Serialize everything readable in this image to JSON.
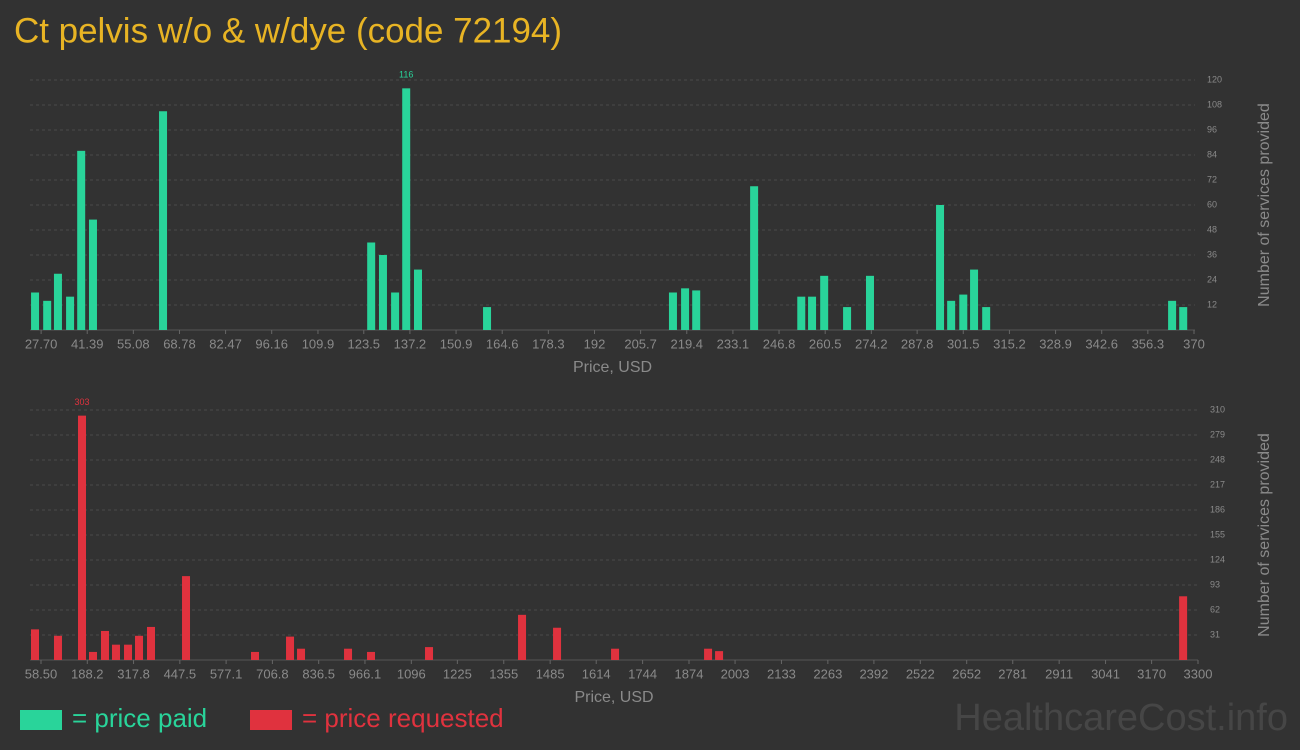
{
  "title": "Ct pelvis w/o & w/dye (code 72194)",
  "watermark": "HealthcareCost.info",
  "chart_data": [
    {
      "type": "bar",
      "name": "= price paid",
      "color": "#29d49a",
      "x": [
        25.9,
        29.5,
        32.7,
        36.3,
        39.6,
        43.1,
        63.9,
        125.7,
        129.2,
        132.8,
        136.1,
        139.6,
        160.1,
        215.3,
        218.9,
        222.2,
        239.4,
        253.4,
        256.6,
        260.2,
        267.0,
        273.8,
        294.6,
        297.9,
        301.5,
        304.7,
        308.3,
        363.5,
        366.8
      ],
      "values": [
        18,
        14,
        27,
        16,
        86,
        53,
        105,
        42,
        36,
        18,
        116,
        29,
        11,
        18,
        20,
        19,
        69,
        16,
        16,
        26,
        11,
        26,
        60,
        14,
        17,
        29,
        11,
        14,
        11
      ],
      "xlim": [
        24.4,
        370.3
      ],
      "xticks": [
        {
          "value": 27.7,
          "label": "27.70"
        },
        41.39,
        55.08,
        68.78,
        82.47,
        96.16,
        109.9,
        123.5,
        137.2,
        150.9,
        164.6,
        178.3,
        192,
        205.7,
        219.4,
        233.1,
        246.8,
        260.5,
        274.2,
        287.8,
        301.5,
        315.2,
        328.9,
        342.6,
        356.3,
        370
      ],
      "ylim": [
        0,
        120
      ],
      "yticks": [
        12,
        24,
        36,
        48,
        60,
        72,
        84,
        96,
        108,
        120
      ],
      "xlabel": "Price, USD",
      "ylabel": "Number of services provided",
      "grid": true
    },
    {
      "type": "bar",
      "name": "= price requested",
      "color": "#e0323e",
      "x": [
        41.7,
        106.1,
        173.4,
        204.2,
        237.8,
        268.6,
        302.3,
        333.1,
        366.7,
        464.8,
        658.1,
        756.2,
        787.0,
        918.7,
        983.1,
        1145.6,
        1406.2,
        1504.3,
        1666.8,
        1927.4,
        1958.2,
        3258.3
      ],
      "values": [
        38,
        30,
        303,
        10,
        36,
        19,
        19,
        30,
        41,
        104,
        10,
        29,
        14,
        14,
        10,
        16,
        56,
        40,
        14,
        14,
        11,
        79
      ],
      "xlim": [
        27.7,
        3300
      ],
      "xticks": [
        {
          "value": 58.5,
          "label": "58.50"
        },
        188.2,
        317.8,
        447.5,
        577.1,
        706.8,
        836.5,
        966.1,
        1096,
        1225,
        1355,
        1485,
        1614,
        1744,
        1874,
        2003,
        2133,
        2263,
        2392,
        2522,
        2652,
        2781,
        2911,
        3041,
        3170,
        3300
      ],
      "ylim": [
        0,
        310
      ],
      "yticks": [
        31,
        62,
        93,
        124,
        155,
        186,
        217,
        248,
        279,
        310
      ],
      "xlabel": "Price, USD",
      "ylabel": "Number of services provided",
      "grid": true
    }
  ]
}
